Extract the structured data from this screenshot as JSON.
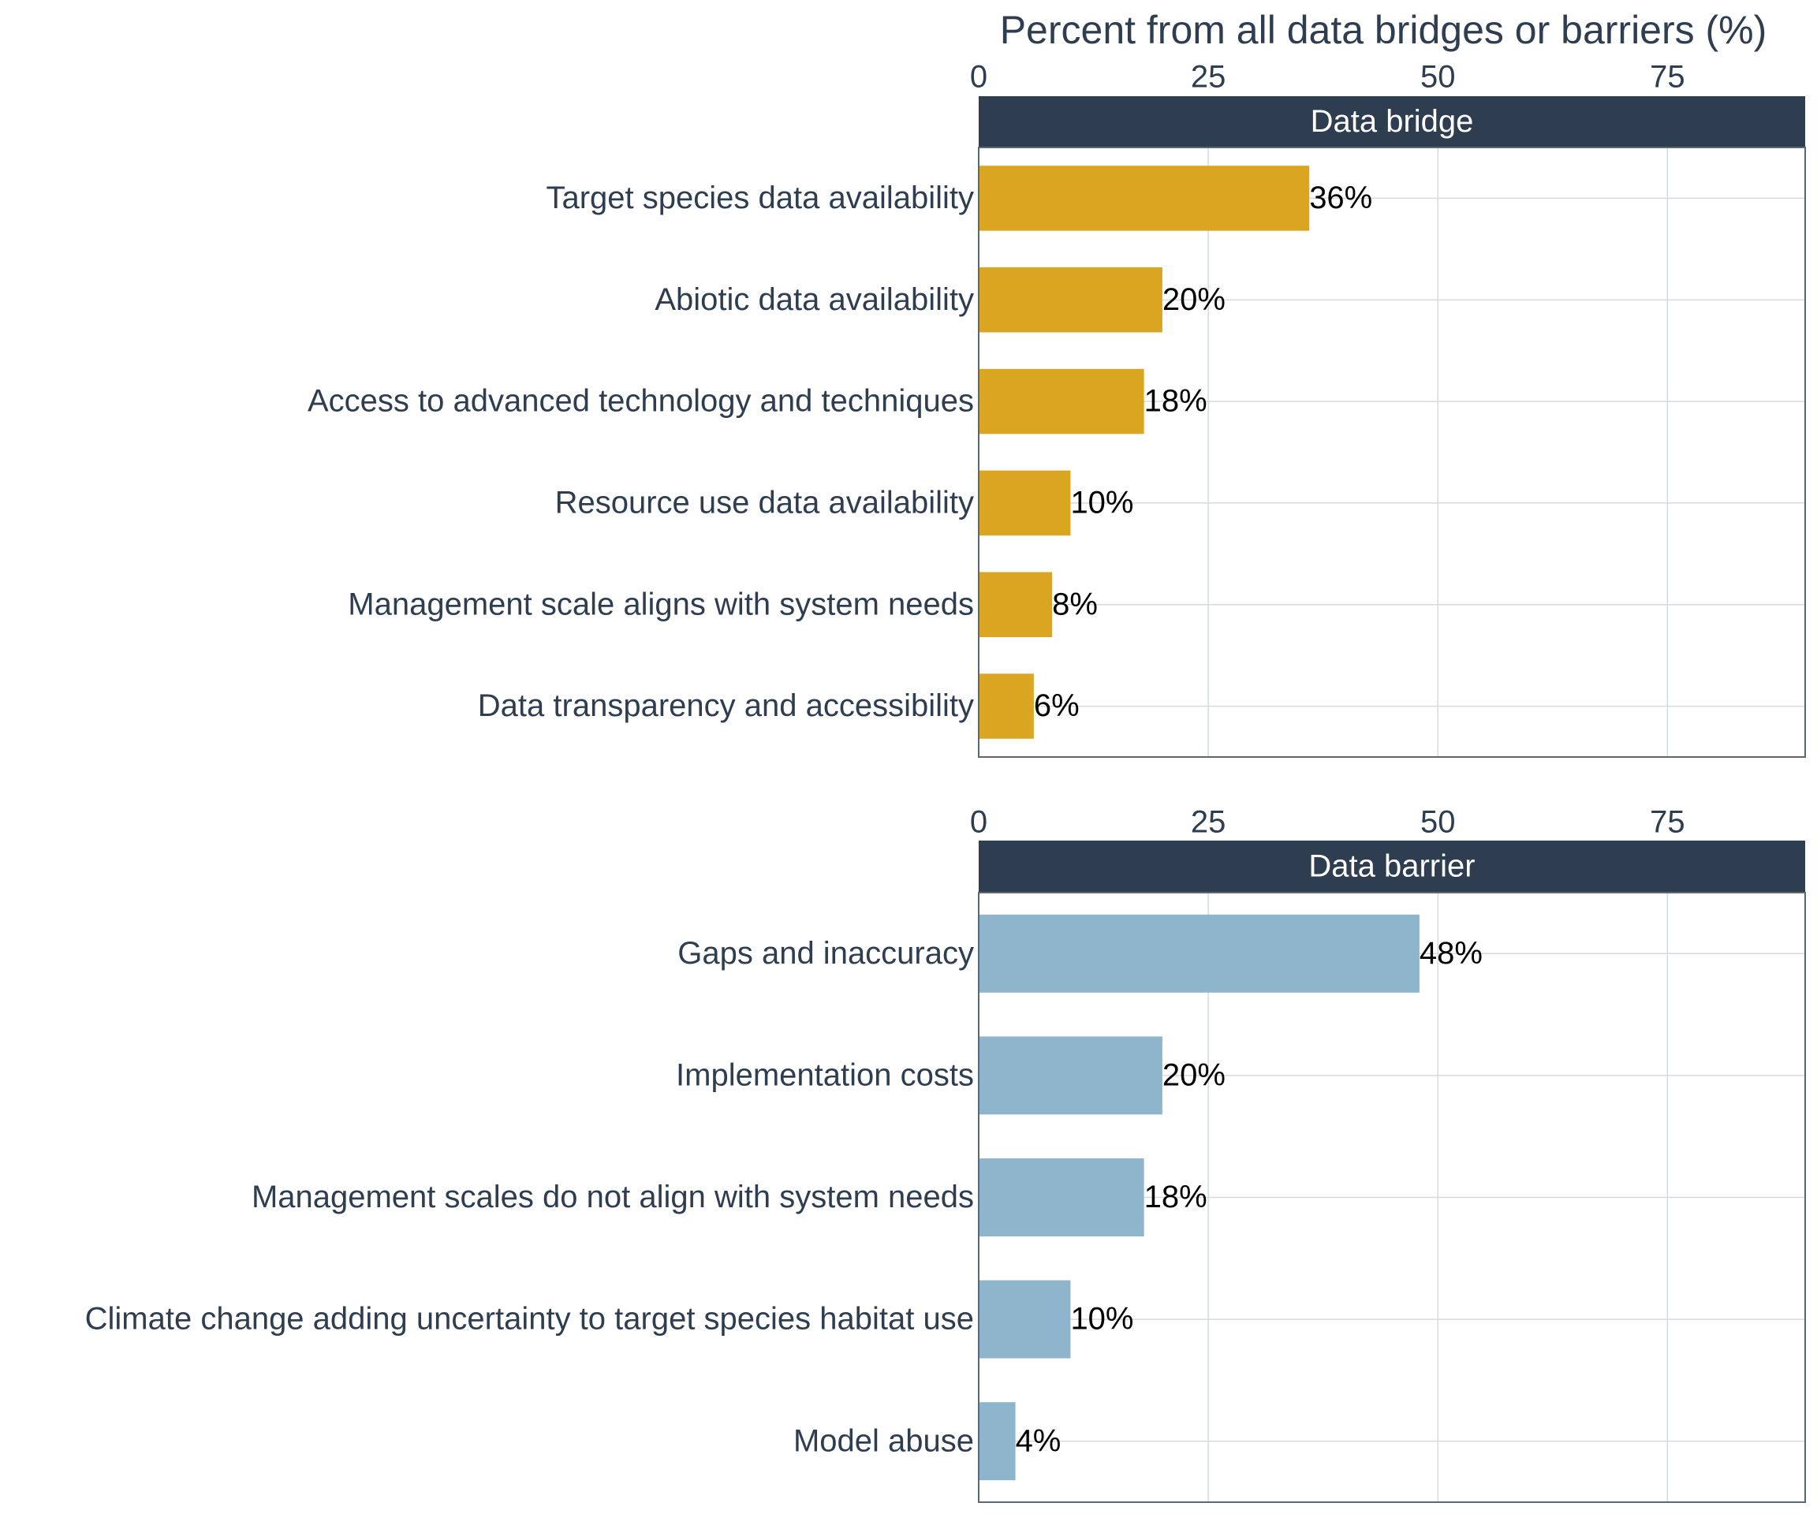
{
  "chart_data": [
    {
      "type": "bar",
      "title": "Data bridge",
      "xlabel": "Percent from all data bridges or barriers (%)",
      "categories": [
        "Target species data availability",
        "Abiotic data availability",
        "Access to advanced technology and techniques",
        "Resource use data availability",
        "Management scale aligns with system needs",
        "Data transparency and accessibility"
      ],
      "values": [
        36,
        20,
        18,
        10,
        8,
        6
      ],
      "value_labels": [
        "36%",
        "20%",
        "18%",
        "10%",
        "8%",
        "6%"
      ],
      "color": "#DAA520",
      "xlim": [
        0,
        90
      ],
      "xticks": [
        0,
        25,
        50,
        75
      ],
      "grid": true
    },
    {
      "type": "bar",
      "title": "Data barrier",
      "categories": [
        "Gaps and inaccuracy",
        "Implementation costs",
        "Management scales do not align with system needs",
        "Climate change adding uncertainty to target species habitat use",
        "Model abuse"
      ],
      "values": [
        48,
        20,
        18,
        10,
        4
      ],
      "value_labels": [
        "48%",
        "20%",
        "18%",
        "10%",
        "4%"
      ],
      "color": "#8FB5CC",
      "xlim": [
        0,
        90
      ],
      "xticks": [
        0,
        25,
        50,
        75
      ],
      "grid": true
    }
  ]
}
